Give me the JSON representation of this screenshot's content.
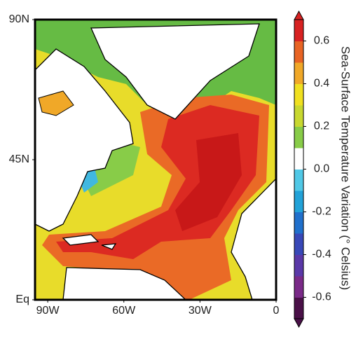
{
  "map": {
    "x_axis": {
      "xlim": [
        -95,
        0
      ],
      "xticks": [
        {
          "value": -90,
          "label": "90W"
        },
        {
          "value": -60,
          "label": "60W"
        },
        {
          "value": -30,
          "label": "30W"
        },
        0
      ]
    },
    "y_axis": {
      "ylim": [
        0,
        90
      ],
      "yticks": [
        {
          "value": 0,
          "label": "Eq"
        },
        {
          "value": 45,
          "label": "45N"
        },
        {
          "value": 90,
          "label": "90N"
        }
      ]
    }
  },
  "colorbar": {
    "title": "Sea-Surface Temperature Variation (° Celsius)",
    "clim": [
      -0.7,
      0.7
    ],
    "ticks": [
      0.6,
      0.4,
      0.2,
      {
        "value": 0,
        "label": "0.0"
      },
      -0.2,
      -0.4,
      -0.6
    ],
    "colors": [
      "#4a1048",
      "#7a2a88",
      "#5a38a8",
      "#3848b8",
      "#2070cc",
      "#22a2d8",
      "#50c8e6",
      "#ffffff",
      "#88cc48",
      "#c8d830",
      "#f0e020",
      "#f0a828",
      "#e86424",
      "#d82222"
    ]
  }
}
